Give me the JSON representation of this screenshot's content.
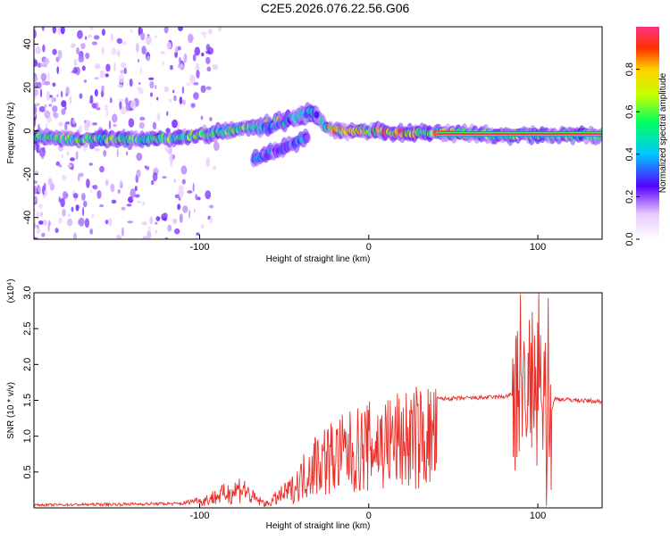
{
  "title": "C2E5.2026.076.22.56.G06",
  "chart_data": [
    {
      "type": "heatmap",
      "xlabel": "Height of straight line (km)",
      "ylabel": "Frequency (Hz)",
      "xlim": [
        -198,
        138
      ],
      "ylim": [
        -50,
        48
      ],
      "xticks": [
        -100,
        0,
        100
      ],
      "xtick_labels": [
        "-100",
        "0",
        "100"
      ],
      "yticks": [
        -40,
        -20,
        0,
        20,
        40
      ],
      "ytick_labels": [
        "-40",
        "-20",
        "0",
        "20",
        "40"
      ],
      "colorbar": {
        "label": "Normalized spectral amplitude",
        "range": [
          0,
          1
        ],
        "ticks": [
          0.0,
          0.2,
          0.4,
          0.6,
          0.8
        ],
        "tick_labels": [
          "0.0",
          "0.2",
          "0.4",
          "0.6",
          "0.8"
        ]
      },
      "ridges": [
        {
          "name": "main",
          "points": [
            [
              -198,
              -3
            ],
            [
              -170,
              -4
            ],
            [
              -140,
              -4
            ],
            [
              -110,
              -3
            ],
            [
              -90,
              -1
            ],
            [
              -75,
              1
            ],
            [
              -60,
              3
            ],
            [
              -50,
              5
            ],
            [
              -40,
              6
            ],
            [
              -32,
              7
            ],
            [
              -25,
              2
            ],
            [
              -20,
              0
            ],
            [
              -10,
              0
            ],
            [
              0,
              0
            ],
            [
              20,
              -1
            ],
            [
              50,
              -1
            ],
            [
              80,
              -2
            ],
            [
              100,
              -2
            ],
            [
              138,
              -2
            ]
          ],
          "amplitude": 0.55
        },
        {
          "name": "upper",
          "points": [
            [
              -65,
              1
            ],
            [
              -55,
              2
            ],
            [
              -45,
              6
            ],
            [
              -35,
              9
            ],
            [
              -30,
              8
            ]
          ],
          "amplitude": 0.35
        },
        {
          "name": "lower",
          "points": [
            [
              -68,
              -13
            ],
            [
              -60,
              -11
            ],
            [
              -50,
              -8
            ],
            [
              -42,
              -5
            ],
            [
              -36,
              -2
            ]
          ],
          "amplitude": 0.3
        },
        {
          "name": "strong-tone",
          "points": [
            [
              40,
              -1
            ],
            [
              60,
              -1.5
            ],
            [
              100,
              -1.5
            ],
            [
              138,
              -1.5
            ]
          ],
          "amplitude": 0.95
        }
      ]
    },
    {
      "type": "line",
      "xlabel": "Height of straight line (km)",
      "ylabel": "SNR (10 * v/v)",
      "scale_note": "(x10⁴)",
      "xlim": [
        -198,
        138
      ],
      "ylim": [
        0,
        3.0
      ],
      "xticks": [
        -100,
        0,
        100
      ],
      "xtick_labels": [
        "-100",
        "0",
        "100"
      ],
      "yticks": [
        0.5,
        1.0,
        1.5,
        2.0,
        2.5,
        3.0
      ],
      "ytick_labels": [
        "0.5",
        "1.0",
        "1.5",
        "2.0",
        "2.5",
        "3.0"
      ],
      "color": "#e8302a",
      "envelope": [
        [
          -198,
          0.04
        ],
        [
          -150,
          0.05
        ],
        [
          -110,
          0.06
        ],
        [
          -100,
          0.12
        ],
        [
          -90,
          0.25
        ],
        [
          -80,
          0.35
        ],
        [
          -75,
          0.45
        ],
        [
          -70,
          0.25
        ],
        [
          -65,
          0.15
        ],
        [
          -60,
          0.08
        ],
        [
          -55,
          0.2
        ],
        [
          -50,
          0.3
        ],
        [
          -45,
          0.4
        ],
        [
          -40,
          0.6
        ],
        [
          -35,
          0.85
        ],
        [
          -30,
          1.0
        ],
        [
          -25,
          1.05
        ],
        [
          -20,
          1.1
        ],
        [
          -15,
          1.15
        ],
        [
          -10,
          1.2
        ],
        [
          -5,
          1.25
        ],
        [
          0,
          1.3
        ],
        [
          10,
          1.4
        ],
        [
          20,
          1.45
        ],
        [
          30,
          1.5
        ],
        [
          40,
          1.52
        ],
        [
          60,
          1.53
        ],
        [
          80,
          1.55
        ],
        [
          88,
          1.6
        ],
        [
          95,
          1.7
        ],
        [
          100,
          1.4
        ],
        [
          105,
          1.1
        ],
        [
          110,
          1.52
        ],
        [
          138,
          1.48
        ]
      ]
    }
  ]
}
